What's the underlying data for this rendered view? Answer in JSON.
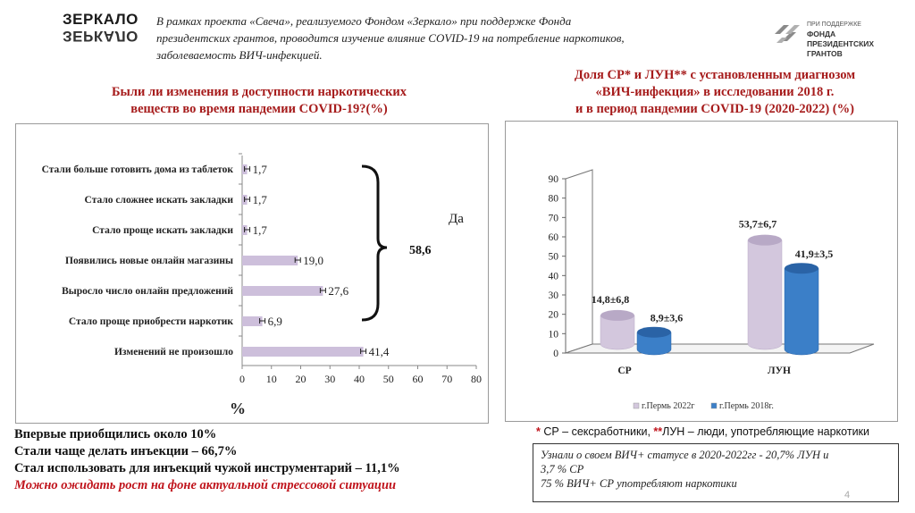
{
  "logos": {
    "left_line1": "ЗЕРКАЛО",
    "left_line2": "ЗЕРКАЛО",
    "right_small": "ПРИ ПОДДЕРЖКЕ",
    "right_line1": "ФОНДА",
    "right_line2": "ПРЕЗИДЕНТСКИХ",
    "right_line3": "ГРАНТОВ"
  },
  "intro": {
    "line1": "В рамках проекта «Свеча», реализуемого Фондом «Зеркало» при поддержке Фонда",
    "line2": "президентских грантов, проводится изучение влияние COVID-19 на потребление наркотиков,",
    "line3": "заболеваемость ВИЧ-инфекцией."
  },
  "left_title": {
    "line1": "Были ли изменения в доступности наркотических",
    "line2": "веществ во время пандемии COVID-19?(%)"
  },
  "right_title": {
    "line1": "Доля  СР* и ЛУН** с установленным диагнозом",
    "line2": "«ВИЧ-инфекция» в исследовании 2018 г.",
    "line3": "и в период пандемии COVID-19 (2020-2022) (%)"
  },
  "chart_data": [
    {
      "type": "bar",
      "orientation": "horizontal",
      "categories": [
        "Стали больше готовить дома из таблеток",
        "Стало сложнее искать закладки",
        "Стало проще искать закладки",
        "Появились новые онлайн магазины",
        "Выросло число онлайн предложений",
        "Стало проще приобрести наркотик",
        "Изменений не произошло"
      ],
      "values": [
        1.7,
        1.7,
        1.7,
        19.0,
        27.6,
        6.9,
        41.4
      ],
      "value_labels": [
        "1,7",
        "1,7",
        "1,7",
        "19,0",
        "27,6",
        "6,9",
        "41,4"
      ],
      "xlabel": "%",
      "xlim": [
        0,
        80
      ],
      "xticks": [
        "0",
        "10",
        "20",
        "30",
        "40",
        "50",
        "60",
        "70",
        "80"
      ],
      "error_bars": true,
      "bracket_label": "Да",
      "bracket_value": "58,6",
      "color": "#cdbfdb"
    },
    {
      "type": "bar",
      "style": "3d-cylinder",
      "categories": [
        "СР",
        "ЛУН"
      ],
      "series": [
        {
          "name": "г.Пермь 2022г",
          "values": [
            14.8,
            53.7
          ],
          "labels": [
            "14,8±6,8",
            "53,7±6,7"
          ],
          "color": "#d3c7dd"
        },
        {
          "name": "г.Пермь 2018г.",
          "values": [
            8.9,
            41.9
          ],
          "labels": [
            "8,9±3,6",
            "41,9±3,5"
          ],
          "color": "#3b7fc8"
        }
      ],
      "ylim": [
        0,
        90
      ],
      "yticks": [
        "0",
        "10",
        "20",
        "30",
        "40",
        "50",
        "60",
        "70",
        "80",
        "90"
      ],
      "legend": "bottom"
    }
  ],
  "facts": {
    "line1": "Впервые приобщились около 10%",
    "line2": "Стали чаще делать инъекции – 66,7%",
    "line3": "Стал использовать для инъекций чужой инструментарий – 11,1%",
    "line4": "Можно ожидать рост на фоне актуальной стрессовой ситуации"
  },
  "footnote": {
    "star1": "*",
    "text1": " СР – сексработники, ",
    "star2": "**",
    "text2": "ЛУН – люди, употребляющие наркотики"
  },
  "note": {
    "line1": "Узнали о своем ВИЧ+ статусе в 2020-2022гг - 20,7% ЛУН и",
    "line2": "3,7 % СР",
    "line3": "75 % ВИЧ+ СР употребляют наркотики"
  },
  "page_number": "4"
}
